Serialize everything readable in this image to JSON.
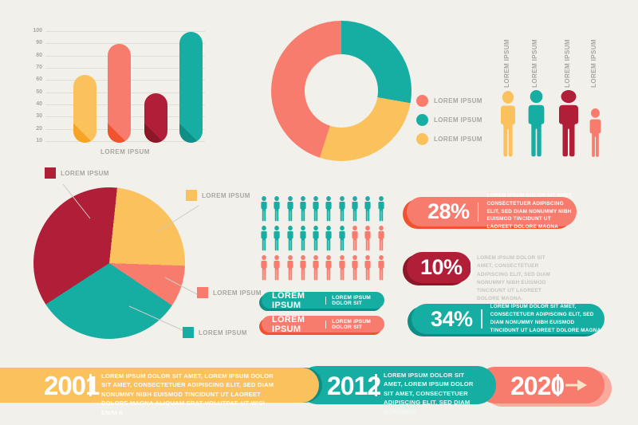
{
  "colors": {
    "background": "#F2F0EA",
    "coral": "#F87C6E",
    "teal": "#16AEA3",
    "yellow": "#FBC15C",
    "dark_red": "#B01E37",
    "coral_dark": "#F1532F",
    "teal_dark": "#0E8E85",
    "yellow_dark": "#F5A426",
    "dark_red_dark": "#8C1727",
    "coral_shadow": "#FBA99C",
    "gray_text": "#A9A6A0",
    "light_gray_text": "#C8C5BD",
    "grid_line": "#E0DDD5"
  },
  "chart_data": [
    {
      "id": "bar-chart",
      "type": "bar",
      "title": "",
      "xlabel": "LOREM IPSUM",
      "ylabel": "",
      "ylim": [
        10,
        100
      ],
      "y_ticks": [
        100,
        90,
        80,
        70,
        60,
        50,
        40,
        30,
        20,
        10
      ],
      "grid": true,
      "categories": [
        "",
        "",
        "",
        ""
      ],
      "values": [
        65,
        90,
        50,
        100
      ],
      "bar_colors": [
        "yellow",
        "coral",
        "dark_red",
        "teal"
      ]
    },
    {
      "id": "donut-chart",
      "type": "pie",
      "subtype": "donut",
      "legend_position": "right",
      "slices": [
        {
          "label": "LOREM IPSUM",
          "color": "teal",
          "percent": 28,
          "start_deg": 0,
          "end_deg": 100
        },
        {
          "label": "LOREM IPSUM",
          "color": "yellow",
          "percent": 27,
          "start_deg": 100,
          "end_deg": 198
        },
        {
          "label": "LOREM IPSUM",
          "color": "coral",
          "percent": 45,
          "start_deg": 198,
          "end_deg": 360
        }
      ],
      "legend": [
        {
          "label": "LOREM IPSUM",
          "color": "coral"
        },
        {
          "label": "LOREM IPSUM",
          "color": "teal"
        },
        {
          "label": "LOREM IPSUM",
          "color": "yellow"
        }
      ]
    },
    {
      "id": "pie-chart",
      "type": "pie",
      "slices": [
        {
          "label": "LOREM IPSUM",
          "color": "yellow",
          "percent": 24,
          "start_deg": 6,
          "end_deg": 92
        },
        {
          "label": "LOREM IPSUM",
          "color": "coral",
          "percent": 9,
          "start_deg": 92,
          "end_deg": 124
        },
        {
          "label": "LOREM IPSUM",
          "color": "teal",
          "percent": 31,
          "start_deg": 124,
          "end_deg": 237
        },
        {
          "label": "LOREM IPSUM",
          "color": "dark_red",
          "percent": 36,
          "start_deg": 237,
          "end_deg": 366
        }
      ]
    }
  ],
  "people_sizes": {
    "figures": [
      {
        "label": "LOREM IPSUM",
        "color": "yellow"
      },
      {
        "label": "LOREM IPSUM",
        "color": "teal"
      },
      {
        "label": "LOREM IPSUM",
        "color": "dark_red"
      },
      {
        "label": "LOREM IPSUM",
        "color": "coral"
      }
    ]
  },
  "people_grid": {
    "columns": 10,
    "rows": [
      {
        "teal": 10,
        "coral": 0
      },
      {
        "teal": 7,
        "coral": 3
      },
      {
        "teal": 0,
        "coral": 10
      }
    ]
  },
  "ribbons": [
    {
      "color": "teal",
      "title": "LOREM IPSUM",
      "subtitle": "LOREM IPSUM DOLOR SIT"
    },
    {
      "color": "coral",
      "title": "LOREM IPSUM",
      "subtitle": "LOREM IPSUM DOLOR SIT"
    }
  ],
  "stats": [
    {
      "value": "28%",
      "color": "coral",
      "text_placement": "inside",
      "text": "LOREM IPSUM DOLOR SIT AMET, CONSECTETUER ADIPISCING ELIT, SED DIAM NONUMMY NIBH EUISMOD TINCIDUNT UT LAOREET DOLORE MAGNA"
    },
    {
      "value": "10%",
      "color": "dark_red",
      "text_placement": "outside",
      "text": "LOREM IPSUM DOLOR SIT AMET, CONSECTETUER ADIPISCING ELIT, SED DIAM NONUMMY NIBH EUISMOD TINCIDUNT UT LAOREET DOLORE MAGNA."
    },
    {
      "value": "34%",
      "color": "teal",
      "text_placement": "inside",
      "text": "LOREM IPSUM DOLOR SIT AMET, CONSECTETUER ADIPISCING ELIT, SED DIAM NONUMMY NIBH EUISMOD TINCIDUNT UT LAOREET DOLORE MAGNA"
    }
  ],
  "timeline": [
    {
      "year": "2001",
      "color": "yellow",
      "text": "LOREM IPSUM DOLOR SIT AMET, LOREM IPSUM DOLOR SIT AMET, CONSECTETUER ADIPISCING ELIT, SED DIAM NONUMMY NIBH EUISMOD TINCIDUNT UT LAOREET DOLORE MAGNA ALIQUAM ERAT VOLUTPAT. UT WISI ENIM A"
    },
    {
      "year": "2012",
      "color": "teal",
      "text": "LOREM IPSUM DOLOR SIT AMET, LOREM IPSUM DOLOR SIT AMET, CONSECTETUER ADIPISCING ELIT, SED DIAM NONUMMY"
    },
    {
      "year": "2020",
      "color": "coral",
      "text": "",
      "arrow": true
    }
  ]
}
